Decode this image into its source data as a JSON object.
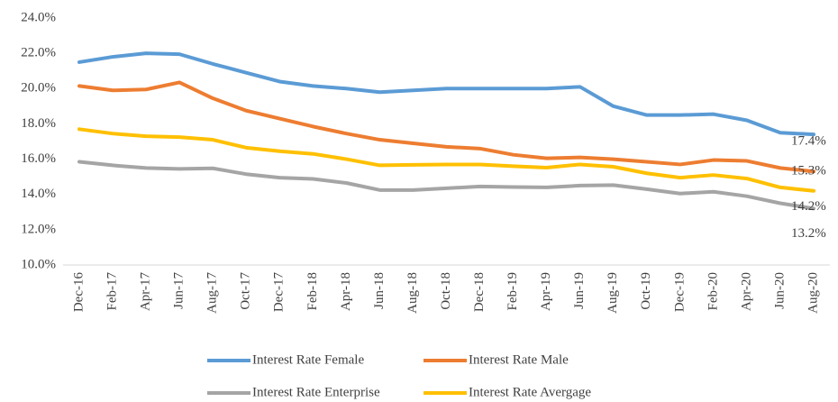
{
  "chart_data": {
    "type": "line",
    "categories": [
      "Dec-16",
      "Feb-17",
      "Apr-17",
      "Jun-17",
      "Aug-17",
      "Oct-17",
      "Dec-17",
      "Feb-18",
      "Apr-18",
      "Jun-18",
      "Aug-18",
      "Oct-18",
      "Dec-18",
      "Feb-19",
      "Apr-19",
      "Jun-19",
      "Aug-19",
      "Oct-19",
      "Dec-19",
      "Feb-20",
      "Apr-20",
      "Jun-20",
      "Aug-20"
    ],
    "series": [
      {
        "name": "Interest Rate Female",
        "color": "#5b9bd5",
        "values": [
          21.5,
          21.8,
          22.0,
          21.95,
          21.4,
          20.9,
          20.4,
          20.15,
          20.0,
          19.8,
          19.9,
          20.0,
          20.0,
          20.0,
          20.0,
          20.1,
          19.0,
          18.5,
          18.5,
          18.55,
          18.2,
          17.5,
          17.4
        ],
        "value_labels": [
          null,
          null,
          null,
          null,
          null,
          null,
          null,
          null,
          null,
          null,
          null,
          null,
          null,
          null,
          null,
          null,
          null,
          null,
          null,
          null,
          null,
          null,
          "17.4%"
        ]
      },
      {
        "name": "Interest Rate Male",
        "color": "#ed7d31",
        "values": [
          20.15,
          19.9,
          19.95,
          20.35,
          19.45,
          18.75,
          18.3,
          17.85,
          17.45,
          17.1,
          16.9,
          16.7,
          16.6,
          16.25,
          16.05,
          16.1,
          16.0,
          15.85,
          15.7,
          15.95,
          15.9,
          15.5,
          15.3
        ],
        "value_labels": [
          null,
          null,
          null,
          null,
          null,
          null,
          null,
          null,
          null,
          null,
          null,
          null,
          null,
          null,
          null,
          null,
          null,
          null,
          null,
          null,
          null,
          null,
          "15.3%"
        ]
      },
      {
        "name": "Interest Rate Enterprise",
        "color": "#a5a5a5",
        "values": [
          15.85,
          15.65,
          15.5,
          15.45,
          15.48,
          15.15,
          14.95,
          14.88,
          14.65,
          14.25,
          14.25,
          14.35,
          14.45,
          14.42,
          14.4,
          14.5,
          14.53,
          14.3,
          14.05,
          14.15,
          13.9,
          13.5,
          13.2
        ],
        "value_labels": [
          null,
          null,
          null,
          null,
          null,
          null,
          null,
          null,
          null,
          null,
          null,
          null,
          null,
          null,
          null,
          null,
          null,
          null,
          null,
          null,
          null,
          null,
          "13.2%"
        ]
      },
      {
        "name": "Interest Rate Avergage",
        "color": "#ffc000",
        "values": [
          17.7,
          17.45,
          17.3,
          17.25,
          17.1,
          16.65,
          16.45,
          16.3,
          16.0,
          15.65,
          15.68,
          15.7,
          15.7,
          15.6,
          15.52,
          15.7,
          15.57,
          15.2,
          14.95,
          15.1,
          14.9,
          14.4,
          14.2
        ],
        "value_labels": [
          null,
          null,
          null,
          null,
          null,
          null,
          null,
          null,
          null,
          null,
          null,
          null,
          null,
          null,
          null,
          null,
          null,
          null,
          null,
          null,
          null,
          null,
          "14.2%"
        ]
      }
    ],
    "ylim": [
      10,
      24
    ],
    "yticks": [
      {
        "value": 10,
        "label": "10.0%"
      },
      {
        "value": 12,
        "label": "12.0%"
      },
      {
        "value": 14,
        "label": "14.0%"
      },
      {
        "value": 16,
        "label": "16.0%"
      },
      {
        "value": 18,
        "label": "18.0%"
      },
      {
        "value": 20,
        "label": "20.0%"
      },
      {
        "value": 22,
        "label": "22.0%"
      },
      {
        "value": 24,
        "label": "24.0%"
      }
    ],
    "grid": false
  }
}
